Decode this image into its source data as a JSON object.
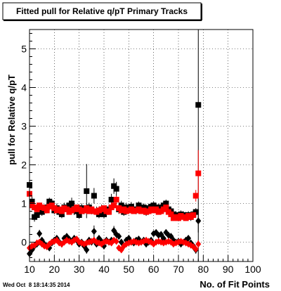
{
  "chart_data": {
    "type": "scatter",
    "title": "Fitted pull for Relative q/pT Primary Tracks",
    "xlabel": "No. of Fit Points",
    "ylabel": "pull for Relative q/pT",
    "xlim": [
      10,
      100
    ],
    "ylim": [
      -0.5,
      5.5
    ],
    "x_ticks": [
      10,
      20,
      30,
      40,
      50,
      60,
      70,
      80,
      90,
      100
    ],
    "y_ticks": [
      0,
      1,
      2,
      3,
      4,
      5
    ],
    "grid": true,
    "timestamp": "Wed Oct  8 18:14:35 2014",
    "colors": {
      "series_black": "#000000",
      "series_red": "#ff0000",
      "grid": "#000000",
      "background": "#ffffff"
    },
    "series": [
      {
        "marker": "square",
        "color": "#000000",
        "x": [
          10,
          11,
          12,
          13,
          14,
          15,
          16,
          17,
          18,
          19,
          20,
          21,
          22,
          23,
          24,
          25,
          26,
          27,
          28,
          29,
          30,
          31,
          32,
          33,
          34,
          35,
          36,
          37,
          38,
          39,
          40,
          41,
          42,
          43,
          44,
          45,
          46,
          47,
          48,
          49,
          50,
          51,
          52,
          53,
          54,
          55,
          56,
          57,
          58,
          59,
          60,
          61,
          62,
          63,
          64,
          65,
          66,
          67,
          68,
          69,
          70,
          71,
          72,
          73,
          74,
          75,
          76,
          77,
          78
        ],
        "y": [
          1.48,
          1.05,
          0.65,
          0.7,
          0.85,
          0.78,
          0.82,
          0.9,
          1.05,
          1.0,
          0.82,
          0.88,
          0.78,
          0.72,
          0.9,
          0.85,
          0.95,
          1.0,
          0.82,
          0.8,
          0.7,
          0.88,
          0.82,
          1.32,
          0.9,
          0.82,
          1.2,
          0.8,
          0.72,
          0.85,
          0.72,
          0.78,
          0.85,
          1.1,
          1.45,
          1.38,
          0.85,
          0.95,
          0.78,
          0.9,
          0.88,
          0.92,
          0.85,
          0.82,
          0.95,
          0.88,
          0.9,
          0.78,
          0.88,
          0.92,
          0.95,
          0.88,
          0.9,
          0.82,
          0.95,
          1.0,
          0.85,
          0.8,
          0.72,
          0.7,
          0.68,
          0.72,
          0.7,
          0.68,
          0.7,
          0.65,
          0.72,
          0.78,
          3.55
        ],
        "yerr": [
          0.2,
          0.15,
          0.12,
          0.1,
          0.1,
          0.1,
          0.1,
          0.12,
          0.1,
          0.1,
          0.1,
          0.12,
          0.1,
          0.1,
          0.12,
          0.1,
          0.12,
          0.15,
          0.12,
          0.1,
          0.1,
          0.12,
          0.1,
          0.7,
          0.12,
          0.1,
          0.2,
          0.12,
          0.1,
          0.12,
          0.1,
          0.12,
          0.12,
          0.15,
          0.2,
          0.18,
          0.12,
          0.12,
          0.1,
          0.12,
          0.1,
          0.12,
          0.1,
          0.1,
          0.1,
          0.1,
          0.1,
          0.1,
          0.1,
          0.1,
          0.1,
          0.1,
          0.1,
          0.1,
          0.1,
          0.1,
          0.1,
          0.1,
          0.1,
          0.1,
          0.1,
          0.1,
          0.1,
          0.1,
          0.1,
          0.1,
          0.1,
          0.1,
          4.2
        ]
      },
      {
        "marker": "square",
        "color": "#ff0000",
        "x": [
          10,
          11,
          12,
          13,
          14,
          15,
          16,
          17,
          18,
          19,
          20,
          21,
          22,
          23,
          24,
          25,
          26,
          27,
          28,
          29,
          30,
          31,
          32,
          33,
          34,
          35,
          36,
          37,
          38,
          39,
          40,
          41,
          42,
          43,
          44,
          45,
          46,
          47,
          48,
          49,
          50,
          51,
          52,
          53,
          54,
          55,
          56,
          57,
          58,
          59,
          60,
          61,
          62,
          63,
          64,
          65,
          66,
          67,
          68,
          69,
          70,
          71,
          72,
          73,
          74,
          75,
          76,
          77,
          78
        ],
        "y": [
          1.25,
          0.95,
          0.9,
          0.85,
          0.95,
          0.9,
          0.88,
          0.82,
          0.92,
          0.95,
          0.88,
          0.82,
          0.85,
          0.8,
          0.88,
          0.85,
          0.78,
          0.82,
          0.85,
          0.9,
          0.85,
          0.8,
          0.82,
          0.88,
          0.8,
          0.85,
          0.8,
          0.78,
          0.82,
          0.85,
          0.88,
          0.8,
          0.78,
          0.9,
          0.95,
          1.1,
          0.88,
          0.82,
          0.85,
          0.8,
          0.82,
          0.85,
          0.8,
          0.82,
          0.85,
          0.8,
          0.82,
          0.78,
          0.8,
          0.85,
          0.82,
          0.85,
          0.78,
          0.8,
          0.85,
          0.9,
          0.78,
          0.72,
          0.62,
          0.65,
          0.62,
          0.68,
          0.65,
          0.62,
          0.68,
          0.65,
          0.7,
          1.2,
          1.78
        ],
        "yerr": [
          0.1,
          0.08,
          0.08,
          0.07,
          0.07,
          0.07,
          0.07,
          0.07,
          0.07,
          0.07,
          0.07,
          0.07,
          0.07,
          0.07,
          0.07,
          0.07,
          0.07,
          0.07,
          0.07,
          0.07,
          0.07,
          0.07,
          0.07,
          0.07,
          0.07,
          0.07,
          0.07,
          0.07,
          0.07,
          0.07,
          0.07,
          0.07,
          0.07,
          0.07,
          0.08,
          0.1,
          0.07,
          0.07,
          0.07,
          0.07,
          0.07,
          0.07,
          0.07,
          0.07,
          0.07,
          0.07,
          0.07,
          0.07,
          0.07,
          0.07,
          0.07,
          0.07,
          0.07,
          0.07,
          0.07,
          0.07,
          0.07,
          0.07,
          0.07,
          0.07,
          0.07,
          0.07,
          0.07,
          0.07,
          0.07,
          0.07,
          0.07,
          0.15,
          0.6
        ]
      },
      {
        "marker": "diamond",
        "color": "#000000",
        "x": [
          10,
          11,
          12,
          13,
          14,
          15,
          16,
          17,
          18,
          19,
          20,
          21,
          22,
          23,
          24,
          25,
          26,
          27,
          28,
          29,
          30,
          31,
          32,
          33,
          34,
          35,
          36,
          37,
          38,
          39,
          40,
          41,
          42,
          43,
          44,
          45,
          46,
          47,
          48,
          49,
          50,
          51,
          52,
          53,
          54,
          55,
          56,
          57,
          58,
          59,
          60,
          61,
          62,
          63,
          64,
          65,
          66,
          67,
          68,
          69,
          70,
          71,
          72,
          73,
          74,
          75,
          76,
          77,
          78
        ],
        "y": [
          -0.3,
          -0.2,
          -0.1,
          -0.05,
          0.22,
          0.05,
          -0.05,
          -0.1,
          -0.15,
          -0.02,
          0.05,
          0.1,
          0.0,
          -0.05,
          0.1,
          0.15,
          0.08,
          0.02,
          0.1,
          0.05,
          -0.05,
          0.0,
          -0.1,
          -0.2,
          0.05,
          0.0,
          0.28,
          -0.05,
          0.1,
          0.02,
          -0.1,
          0.05,
          0.0,
          0.05,
          0.3,
          0.2,
          0.15,
          0.0,
          -0.1,
          0.05,
          0.1,
          0.0,
          -0.02,
          0.05,
          0.08,
          0.0,
          0.05,
          -0.05,
          0.0,
          0.05,
          0.22,
          0.25,
          0.18,
          0.2,
          0.1,
          0.25,
          0.18,
          0.15,
          0.05,
          0.0,
          0.02,
          -0.05,
          0.0,
          0.05,
          0.1,
          -0.02,
          -0.1,
          -0.2,
          0.55
        ],
        "yerr": [
          0.15,
          0.12,
          0.1,
          0.08,
          0.1,
          0.08,
          0.08,
          0.08,
          0.08,
          0.08,
          0.08,
          0.08,
          0.08,
          0.08,
          0.08,
          0.08,
          0.08,
          0.08,
          0.08,
          0.08,
          0.08,
          0.08,
          0.08,
          0.1,
          0.08,
          0.08,
          0.15,
          0.08,
          0.08,
          0.08,
          0.08,
          0.08,
          0.08,
          0.08,
          0.12,
          0.1,
          0.08,
          0.08,
          0.08,
          0.08,
          0.08,
          0.08,
          0.08,
          0.08,
          0.08,
          0.08,
          0.08,
          0.08,
          0.08,
          0.08,
          0.08,
          0.08,
          0.08,
          0.08,
          0.08,
          0.08,
          0.08,
          0.08,
          0.08,
          0.08,
          0.08,
          0.08,
          0.08,
          0.08,
          0.08,
          0.08,
          0.08,
          0.1,
          0.3
        ]
      },
      {
        "marker": "diamond",
        "color": "#ff0000",
        "x": [
          10,
          11,
          12,
          13,
          14,
          15,
          16,
          17,
          18,
          19,
          20,
          21,
          22,
          23,
          24,
          25,
          26,
          27,
          28,
          29,
          30,
          31,
          32,
          33,
          34,
          35,
          36,
          37,
          38,
          39,
          40,
          41,
          42,
          43,
          44,
          45,
          46,
          47,
          48,
          49,
          50,
          51,
          52,
          53,
          54,
          55,
          56,
          57,
          58,
          59,
          60,
          61,
          62,
          63,
          64,
          65,
          66,
          67,
          68,
          69,
          70,
          71,
          72,
          73,
          74,
          75,
          76,
          77,
          78
        ],
        "y": [
          -0.15,
          -0.1,
          -0.08,
          -0.02,
          0.0,
          -0.05,
          -0.1,
          -0.12,
          -0.05,
          0.0,
          0.02,
          0.05,
          -0.02,
          -0.05,
          0.0,
          0.05,
          0.02,
          0.0,
          0.05,
          0.08,
          0.0,
          -0.02,
          -0.05,
          -0.02,
          0.0,
          0.02,
          0.05,
          0.0,
          -0.02,
          -0.05,
          0.0,
          0.02,
          0.0,
          -0.02,
          0.05,
          0.02,
          -0.15,
          -0.2,
          -0.1,
          -0.05,
          -0.02,
          0.0,
          0.02,
          0.0,
          -0.02,
          0.0,
          0.02,
          0.05,
          0.02,
          0.0,
          -0.05,
          0.0,
          0.02,
          0.0,
          -0.02,
          0.0,
          0.02,
          0.0,
          -0.05,
          -0.02,
          0.0,
          0.02,
          0.0,
          -0.02,
          -0.05,
          -0.08,
          -0.12,
          -0.18,
          -0.05
        ],
        "yerr": [
          0.05,
          0.05,
          0.05,
          0.05,
          0.05,
          0.05,
          0.05,
          0.05,
          0.05,
          0.05,
          0.05,
          0.05,
          0.05,
          0.05,
          0.05,
          0.05,
          0.05,
          0.05,
          0.05,
          0.05,
          0.05,
          0.05,
          0.05,
          0.05,
          0.05,
          0.05,
          0.05,
          0.05,
          0.05,
          0.05,
          0.05,
          0.05,
          0.05,
          0.05,
          0.05,
          0.05,
          0.05,
          0.05,
          0.05,
          0.05,
          0.05,
          0.05,
          0.05,
          0.05,
          0.05,
          0.05,
          0.05,
          0.05,
          0.05,
          0.05,
          0.05,
          0.05,
          0.05,
          0.05,
          0.05,
          0.05,
          0.05,
          0.05,
          0.05,
          0.05,
          0.05,
          0.05,
          0.05,
          0.05,
          0.05,
          0.05,
          0.05,
          0.08,
          0.1
        ]
      }
    ]
  }
}
